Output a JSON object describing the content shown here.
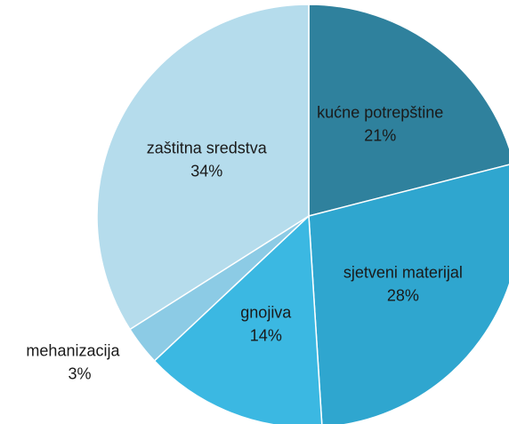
{
  "chart_data": {
    "type": "pie",
    "categories": [
      "kućne potrepštine",
      "sjetveni materijal",
      "gnojiva",
      "mehanizacija",
      "zaštitna sredstva"
    ],
    "values": [
      21,
      28,
      14,
      3,
      34
    ],
    "value_labels": [
      "21%",
      "28%",
      "14%",
      "3%",
      "34%"
    ],
    "colors": [
      "#2f819d",
      "#2fa6cf",
      "#3bb8e2",
      "#8ccbe5",
      "#b5dcec"
    ]
  }
}
